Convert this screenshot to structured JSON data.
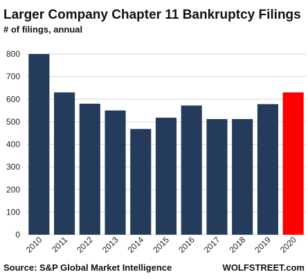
{
  "chart_data": {
    "type": "bar",
    "title": "Larger Company Chapter 11 Bankruptcy Filings",
    "subtitle": "# of filings, annual",
    "categories": [
      "2010",
      "2011",
      "2012",
      "2013",
      "2014",
      "2015",
      "2016",
      "2017",
      "2018",
      "2019",
      "2020"
    ],
    "values": [
      800,
      630,
      580,
      550,
      468,
      518,
      572,
      512,
      512,
      578,
      630
    ],
    "colors": [
      "#253b5b",
      "#253b5b",
      "#253b5b",
      "#253b5b",
      "#253b5b",
      "#253b5b",
      "#253b5b",
      "#253b5b",
      "#253b5b",
      "#253b5b",
      "#ff0000"
    ],
    "ylim": [
      0,
      800
    ],
    "yticks": [
      "0",
      "100",
      "200",
      "300",
      "400",
      "500",
      "600",
      "700",
      "800"
    ],
    "grid": true,
    "xlabel": "",
    "ylabel": ""
  },
  "footer": {
    "source": "Source: S&P Global Market Intelligence",
    "brand": "WOLFSTREET.com"
  }
}
